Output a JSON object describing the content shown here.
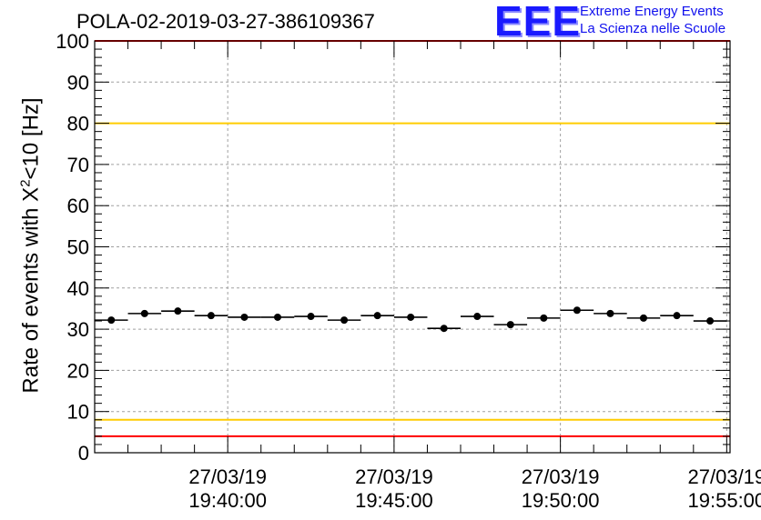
{
  "header": {
    "title": "POLA-02-2019-03-27-386109367",
    "logo_mark": "EEE",
    "logo_line1": "Extreme Energy Events",
    "logo_line2": "La Scienza nelle Scuole"
  },
  "chart_data": {
    "type": "scatter",
    "title": "POLA-02-2019-03-27-386109367",
    "ylabel_prefix": "Rate of events with X",
    "ylabel_sup": "2",
    "ylabel_suffix": "<10 [Hz]",
    "xlabel": "",
    "ylim": [
      0,
      100
    ],
    "yticks": [
      0,
      10,
      20,
      30,
      40,
      50,
      60,
      70,
      80,
      90,
      100
    ],
    "grid": true,
    "x_unit": "minutes after 19:36:00 on 27/03/19",
    "xlim": [
      0,
      19.1
    ],
    "xticks": [
      {
        "x": 4,
        "date": "27/03/19",
        "time": "19:40:00"
      },
      {
        "x": 9,
        "date": "27/03/19",
        "time": "19:45:00"
      },
      {
        "x": 14,
        "date": "27/03/19",
        "time": "19:50:00"
      },
      {
        "x": 19,
        "date": "27/03/19",
        "time": "19:55:00"
      }
    ],
    "points": [
      {
        "x": 0.5,
        "y": 32.2
      },
      {
        "x": 1.5,
        "y": 33.8
      },
      {
        "x": 2.5,
        "y": 34.4
      },
      {
        "x": 3.5,
        "y": 33.3
      },
      {
        "x": 4.5,
        "y": 32.9
      },
      {
        "x": 5.5,
        "y": 32.9
      },
      {
        "x": 6.5,
        "y": 33.1
      },
      {
        "x": 7.5,
        "y": 32.2
      },
      {
        "x": 8.5,
        "y": 33.3
      },
      {
        "x": 9.5,
        "y": 32.9
      },
      {
        "x": 10.5,
        "y": 30.2
      },
      {
        "x": 11.5,
        "y": 33.1
      },
      {
        "x": 12.5,
        "y": 31.1
      },
      {
        "x": 13.5,
        "y": 32.7
      },
      {
        "x": 14.5,
        "y": 34.6
      },
      {
        "x": 15.5,
        "y": 33.8
      },
      {
        "x": 16.5,
        "y": 32.7
      },
      {
        "x": 17.5,
        "y": 33.3
      },
      {
        "x": 18.5,
        "y": 32.0
      }
    ],
    "reference_lines": [
      {
        "y": 100,
        "color": "#ff0000"
      },
      {
        "y": 80,
        "color": "#ffcc00"
      },
      {
        "y": 8,
        "color": "#ffcc00"
      },
      {
        "y": 4,
        "color": "#ff0000"
      }
    ]
  }
}
